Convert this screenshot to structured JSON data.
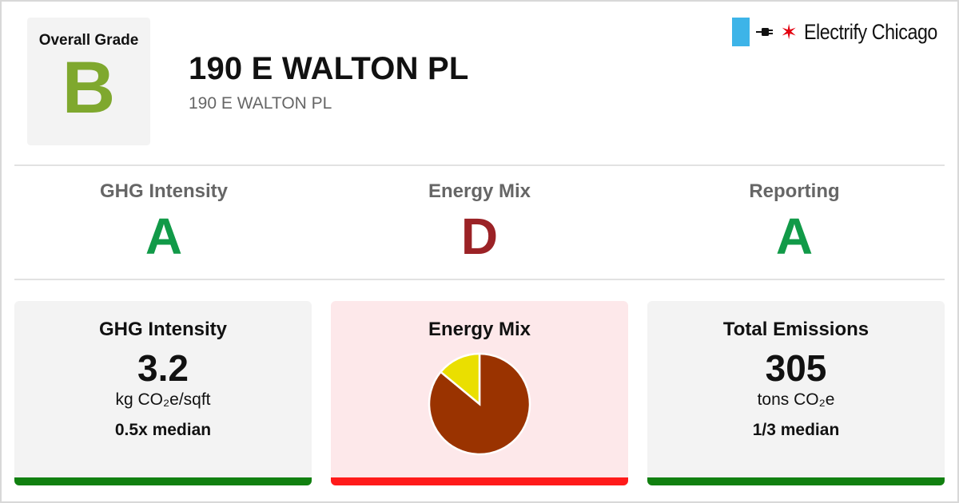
{
  "header": {
    "overall_label": "Overall Grade",
    "overall_grade": "B",
    "overall_color": "#7fa82e",
    "title": "190 E WALTON PL",
    "subtitle": "190 E WALTON PL",
    "brand": {
      "name": "Electrify Chicago",
      "icons": [
        "chicago-flag-icon",
        "plug-icon",
        "red-star-icon"
      ],
      "flag_color": "#3db4e8",
      "star_color": "#e3000f"
    }
  },
  "grades": [
    {
      "label": "GHG Intensity",
      "letter": "A",
      "color": "#119a48"
    },
    {
      "label": "Energy Mix",
      "letter": "D",
      "color": "#9b2226"
    },
    {
      "label": "Reporting",
      "letter": "A",
      "color": "#119a48"
    }
  ],
  "cards": {
    "ghg": {
      "title": "GHG Intensity",
      "value": "3.2",
      "unit": "kg CO₂e/sqft",
      "median": "0.5x median",
      "bg": "#f3f3f3",
      "bar_color": "#118010"
    },
    "mix": {
      "title": "Energy Mix",
      "bg": "#fde8ea",
      "bar_color": "#ff1a1a",
      "pie": [
        {
          "share": 0.86,
          "color": "#9a3300"
        },
        {
          "share": 0.14,
          "color": "#eadf00"
        }
      ]
    },
    "emissions": {
      "title": "Total Emissions",
      "value": "305",
      "unit": "tons CO₂e",
      "median": "1/3 median",
      "bg": "#f3f3f3",
      "bar_color": "#118010"
    }
  }
}
